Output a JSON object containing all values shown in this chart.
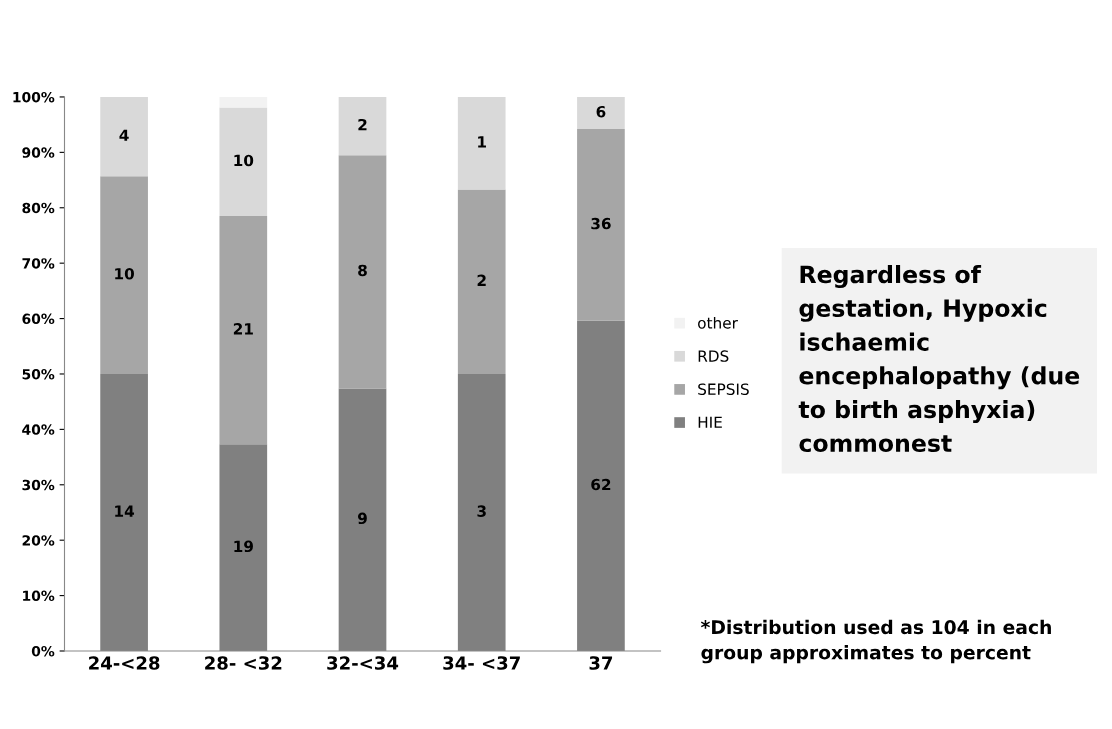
{
  "chart_data": {
    "type": "bar",
    "stacked": true,
    "categories": [
      "24-<28",
      "28- <32",
      "32-<34",
      "34- <37",
      "37"
    ],
    "series": [
      {
        "name": "HIE",
        "color": "#808080",
        "values": [
          50.0,
          37.3,
          47.4,
          50.0,
          59.6
        ]
      },
      {
        "name": "SEPSIS",
        "color": "#a6a6a6",
        "values": [
          35.7,
          41.2,
          42.1,
          33.3,
          34.6
        ]
      },
      {
        "name": "RDS",
        "color": "#d9d9d9",
        "values": [
          14.3,
          19.6,
          10.5,
          16.7,
          5.8
        ]
      },
      {
        "name": "other",
        "color": "#f2f2f2",
        "values": [
          0,
          2.0,
          0,
          0,
          0
        ]
      }
    ],
    "ylim": [
      0,
      100
    ],
    "yticks": [
      {
        "value": 0,
        "label": "0%"
      },
      {
        "value": 10,
        "label": "10%"
      },
      {
        "value": 20,
        "label": "20%"
      },
      {
        "value": 30,
        "label": "30%"
      },
      {
        "value": 40,
        "label": "40%"
      },
      {
        "value": 50,
        "label": "50%"
      },
      {
        "value": 60,
        "label": "60%"
      },
      {
        "value": 70,
        "label": "70%"
      },
      {
        "value": 80,
        "label": "80%"
      },
      {
        "value": 90,
        "label": "90%"
      },
      {
        "value": 100,
        "label": "100%"
      }
    ],
    "legend": "right",
    "grid": false,
    "annotations": [
      "Regardless of gestation, Hypoxic ischaemic encephalopathy (due to birth asphyxia) commonest",
      "*Distribution used as 104 in each group approximates to percent",
      "14",
      "19",
      "9",
      "3",
      "62",
      "10",
      "21",
      "8",
      "2",
      "36",
      "4",
      "10",
      "2",
      "1",
      "6"
    ]
  }
}
